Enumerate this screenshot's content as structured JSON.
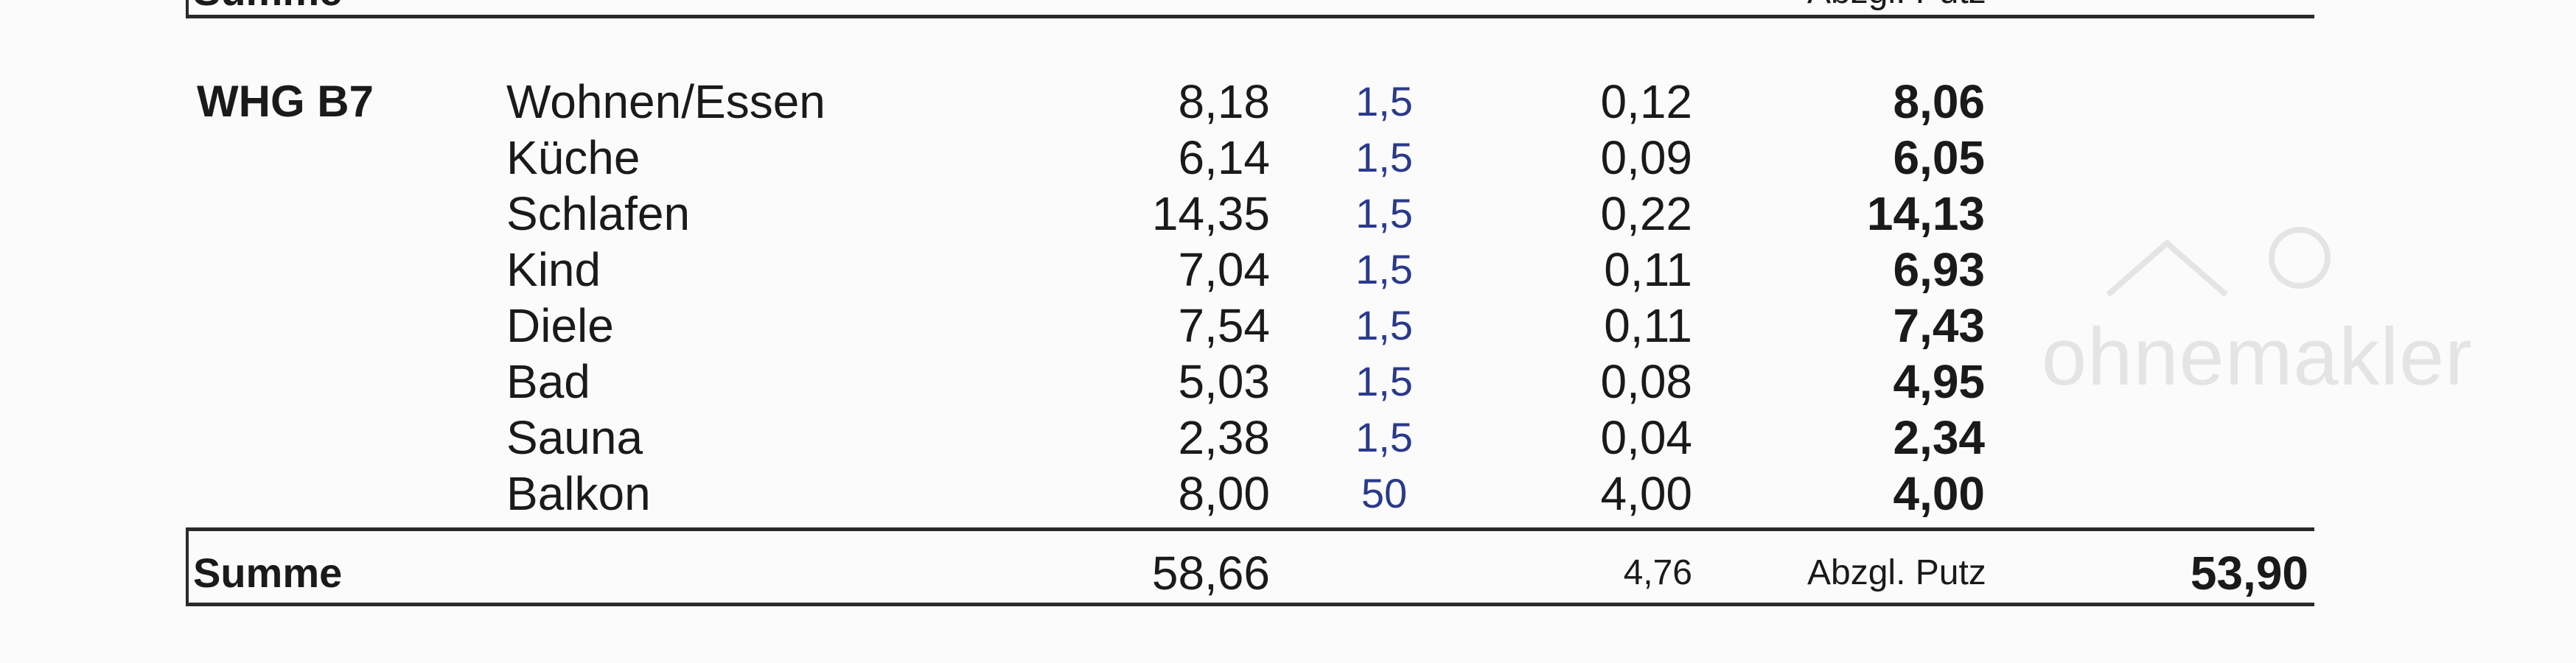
{
  "previous_total": {
    "label": "Summe",
    "note": "Abzgl. Putz"
  },
  "apartment": {
    "name": "WHG B7",
    "rooms": [
      {
        "name": "Wohnen/Essen",
        "area": "8,18",
        "factor": "1,5",
        "deduction": "0,12",
        "net": "8,06"
      },
      {
        "name": "Küche",
        "area": "6,14",
        "factor": "1,5",
        "deduction": "0,09",
        "net": "6,05"
      },
      {
        "name": "Schlafen",
        "area": "14,35",
        "factor": "1,5",
        "deduction": "0,22",
        "net": "14,13"
      },
      {
        "name": "Kind",
        "area": "7,04",
        "factor": "1,5",
        "deduction": "0,11",
        "net": "6,93"
      },
      {
        "name": "Diele",
        "area": "7,54",
        "factor": "1,5",
        "deduction": "0,11",
        "net": "7,43"
      },
      {
        "name": "Bad",
        "area": "5,03",
        "factor": "1,5",
        "deduction": "0,08",
        "net": "4,95"
      },
      {
        "name": "Sauna",
        "area": "2,38",
        "factor": "1,5",
        "deduction": "0,04",
        "net": "2,34"
      },
      {
        "name": "Balkon",
        "area": "8,00",
        "factor": "50",
        "deduction": "4,00",
        "net": "4,00"
      }
    ],
    "total": {
      "label": "Summe",
      "area": "58,66",
      "deduction": "4,76",
      "note": "Abzgl. Putz",
      "net": "53,90"
    }
  },
  "watermark": {
    "text": "ohnemakler"
  },
  "colors": {
    "factor": "#2a3a8a",
    "text": "#1a1a1a",
    "rule": "#2a2a2a"
  }
}
